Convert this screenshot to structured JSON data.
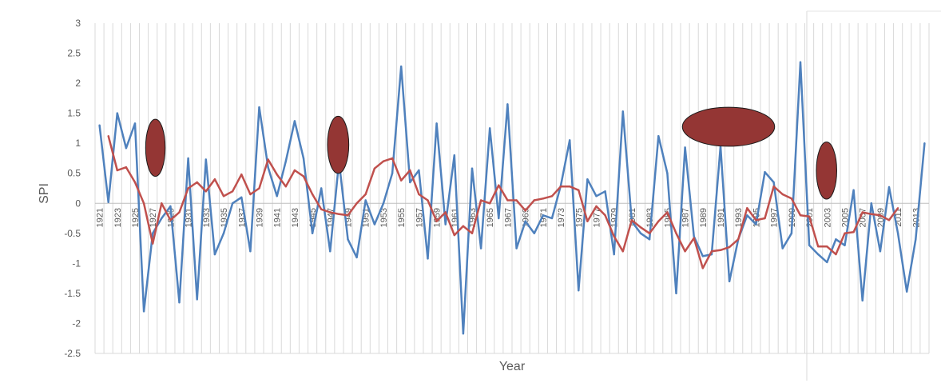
{
  "chart_data": {
    "type": "line",
    "title": "",
    "xlabel": "Year",
    "ylabel": "SPI",
    "x_start": 1921,
    "x_end": 2014,
    "x_tick_labels": [
      "1921",
      "1923",
      "1925",
      "1927",
      "1929",
      "1931",
      "1933",
      "1935",
      "1937",
      "1939",
      "1941",
      "1943",
      "1945",
      "1947",
      "1949",
      "1951",
      "1953",
      "1955",
      "1957",
      "1959",
      "1961",
      "1963",
      "1965",
      "1967",
      "1969",
      "1971",
      "1973",
      "1975",
      "1977",
      "1979",
      "1981",
      "1983",
      "1985",
      "1987",
      "1989",
      "1991",
      "1993",
      "1995",
      "1997",
      "1999",
      "2001",
      "2003",
      "2005",
      "2007",
      "2009",
      "2011",
      "2013"
    ],
    "y_tick_labels": [
      "3",
      "2.5",
      "2",
      "1.5",
      "1",
      "0.5",
      "0",
      "-0.5",
      "-1",
      "-1.5",
      "-2",
      "-2.5"
    ],
    "ylim": [
      -2.5,
      3
    ],
    "grid": "vertical",
    "legend": "none",
    "series": [
      {
        "color": "#4f81bd",
        "x": [
          1921,
          1922,
          1923,
          1924,
          1925,
          1926,
          1927,
          1928,
          1929,
          1930,
          1931,
          1932,
          1933,
          1934,
          1935,
          1936,
          1937,
          1938,
          1939,
          1940,
          1941,
          1942,
          1943,
          1944,
          1945,
          1946,
          1947,
          1948,
          1949,
          1950,
          1951,
          1952,
          1953,
          1954,
          1955,
          1956,
          1957,
          1958,
          1959,
          1960,
          1961,
          1962,
          1963,
          1964,
          1965,
          1966,
          1967,
          1968,
          1969,
          1970,
          1971,
          1972,
          1973,
          1974,
          1975,
          1976,
          1977,
          1978,
          1979,
          1980,
          1981,
          1982,
          1983,
          1984,
          1985,
          1986,
          1987,
          1988,
          1989,
          1990,
          1991,
          1992,
          1993,
          1994,
          1995,
          1996,
          1997,
          1998,
          1999,
          2000,
          2001,
          2002,
          2003,
          2004,
          2005,
          2006,
          2007,
          2008,
          2009,
          2010,
          2011,
          2012,
          2013,
          2014
        ],
        "values": [
          1.3,
          0.02,
          1.5,
          0.92,
          1.33,
          -1.8,
          -0.5,
          -0.25,
          -0.05,
          -1.65,
          0.75,
          -1.6,
          0.73,
          -0.85,
          -0.5,
          0.0,
          0.1,
          -0.8,
          1.6,
          0.6,
          0.12,
          0.7,
          1.37,
          0.75,
          -0.5,
          0.25,
          -0.8,
          0.7,
          -0.6,
          -0.9,
          0.05,
          -0.35,
          0.0,
          0.5,
          2.28,
          0.35,
          0.55,
          -0.92,
          1.33,
          -0.35,
          0.8,
          -2.17,
          0.58,
          -0.75,
          1.25,
          -0.25,
          1.65,
          -0.75,
          -0.3,
          -0.5,
          -0.2,
          -0.25,
          0.3,
          1.05,
          -1.45,
          0.4,
          0.12,
          0.2,
          -0.85,
          1.53,
          -0.3,
          -0.5,
          -0.6,
          1.12,
          0.5,
          -1.5,
          0.93,
          -0.55,
          -0.88,
          -0.85,
          0.95,
          -1.3,
          -0.6,
          -0.2,
          -0.35,
          0.52,
          0.35,
          -0.75,
          -0.5,
          2.35,
          -0.7,
          -0.85,
          -0.98,
          -0.6,
          -0.7,
          0.22,
          -1.62,
          0.0,
          -0.8,
          0.27,
          -0.5,
          -1.47,
          -0.6,
          1.0
        ]
      },
      {
        "color": "#c0504d",
        "x": [
          1922,
          1923,
          1924,
          1925,
          1926,
          1927,
          1928,
          1929,
          1930,
          1931,
          1932,
          1933,
          1934,
          1935,
          1936,
          1937,
          1938,
          1939,
          1940,
          1941,
          1942,
          1943,
          1944,
          1945,
          1946,
          1947,
          1948,
          1949,
          1950,
          1951,
          1952,
          1953,
          1954,
          1955,
          1956,
          1957,
          1958,
          1959,
          1960,
          1961,
          1962,
          1963,
          1964,
          1965,
          1966,
          1967,
          1968,
          1969,
          1970,
          1971,
          1972,
          1973,
          1974,
          1975,
          1976,
          1977,
          1978,
          1979,
          1980,
          1981,
          1982,
          1983,
          1984,
          1985,
          1986,
          1987,
          1988,
          1989,
          1990,
          1991,
          1992,
          1993,
          1994,
          1995,
          1996,
          1997,
          1998,
          1999,
          2000,
          2001,
          2002,
          2003,
          2004,
          2005,
          2006,
          2007,
          2008,
          2009,
          2010,
          2011
        ],
        "values": [
          1.12,
          0.55,
          0.6,
          0.35,
          0.0,
          -0.67,
          0.0,
          -0.28,
          -0.15,
          0.25,
          0.35,
          0.2,
          0.4,
          0.12,
          0.2,
          0.48,
          0.15,
          0.25,
          0.73,
          0.48,
          0.28,
          0.55,
          0.45,
          0.15,
          -0.1,
          -0.15,
          -0.18,
          -0.2,
          0.0,
          0.15,
          0.58,
          0.7,
          0.75,
          0.38,
          0.55,
          0.15,
          0.05,
          -0.3,
          -0.15,
          -0.53,
          -0.38,
          -0.5,
          0.05,
          0.0,
          0.3,
          0.05,
          0.05,
          -0.12,
          0.05,
          0.08,
          0.12,
          0.28,
          0.28,
          0.22,
          -0.3,
          -0.05,
          -0.2,
          -0.55,
          -0.8,
          -0.28,
          -0.4,
          -0.5,
          -0.3,
          -0.15,
          -0.5,
          -0.8,
          -0.58,
          -1.08,
          -0.8,
          -0.78,
          -0.73,
          -0.6,
          -0.08,
          -0.28,
          -0.25,
          0.28,
          0.15,
          0.08,
          -0.2,
          -0.22,
          -0.72,
          -0.72,
          -0.85,
          -0.5,
          -0.48,
          -0.15,
          -0.18,
          -0.2,
          -0.28,
          -0.08
        ]
      }
    ],
    "annotations": [
      {
        "shape": "ellipse",
        "color": "#943634",
        "x_from": 1926.2,
        "x_to": 1928.4,
        "y_from": 0.45,
        "y_to": 1.4
      },
      {
        "shape": "ellipse",
        "color": "#943634",
        "x_from": 1946.7,
        "x_to": 1949.1,
        "y_from": 0.5,
        "y_to": 1.45
      },
      {
        "shape": "ellipse",
        "color": "#943634",
        "x_from": 1986.7,
        "x_to": 1997.1,
        "y_from": 0.95,
        "y_to": 1.6
      },
      {
        "shape": "ellipse",
        "color": "#943634",
        "x_from": 2001.8,
        "x_to": 2004.1,
        "y_from": 0.07,
        "y_to": 1.02
      }
    ]
  }
}
